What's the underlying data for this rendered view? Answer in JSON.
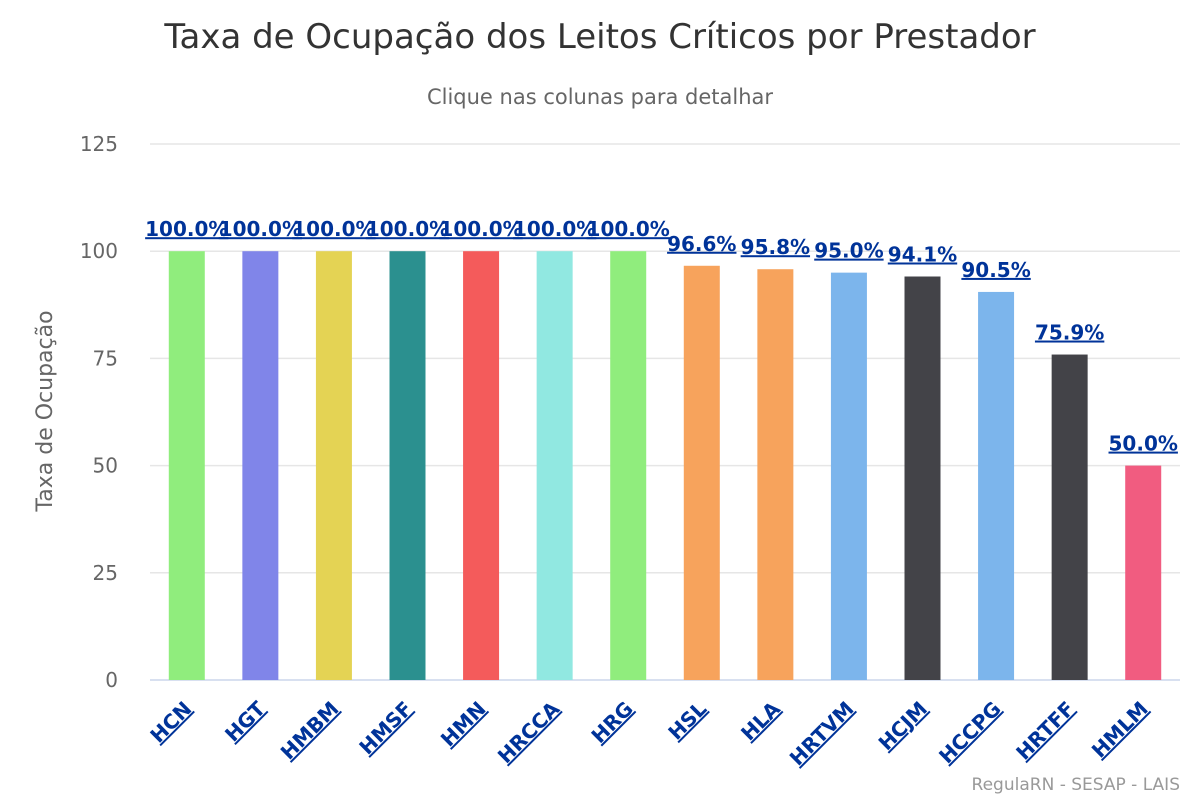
{
  "chart_data": {
    "type": "bar",
    "title": "Taxa de Ocupação dos Leitos Críticos por Prestador",
    "subtitle": "Clique nas colunas para detalhar",
    "xlabel": "",
    "ylabel": "Taxa de Ocupação",
    "ylim": [
      0,
      125
    ],
    "yticks": [
      0,
      25,
      50,
      75,
      100,
      125
    ],
    "grid": true,
    "categories": [
      "HCN",
      "HGT",
      "HMBM",
      "HMSF",
      "HMN",
      "HRCCA",
      "HRG",
      "HSL",
      "HLA",
      "HRTVM",
      "HCJM",
      "HCCPG",
      "HRTFF",
      "HMLM"
    ],
    "values": [
      100.0,
      100.0,
      100.0,
      100.0,
      100.0,
      100.0,
      100.0,
      96.6,
      95.8,
      95.0,
      94.1,
      90.5,
      75.9,
      50.0
    ],
    "data_labels": [
      "100.0%",
      "100.0%",
      "100.0%",
      "100.0%",
      "100.0%",
      "100.0%",
      "100.0%",
      "96.6%",
      "95.8%",
      "95.0%",
      "94.1%",
      "90.5%",
      "75.9%",
      "50.0%"
    ],
    "colors": [
      "#90ed7d",
      "#8085e9",
      "#e4d354",
      "#2b908f",
      "#f45b5b",
      "#91e8e1",
      "#90ed7d",
      "#f7a35c",
      "#f7a35c",
      "#7cb5ec",
      "#434348",
      "#7cb5ec",
      "#434348",
      "#f15c80"
    ]
  },
  "credits": "RegulaRN - SESAP - LAIS"
}
